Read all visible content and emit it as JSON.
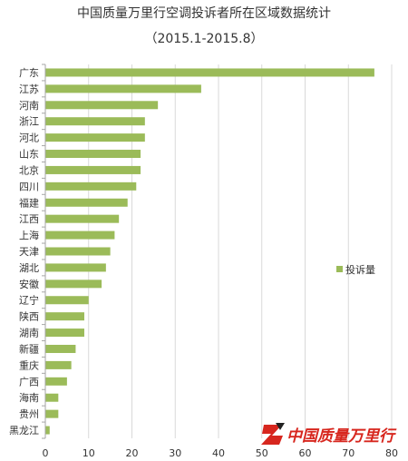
{
  "logo": {
    "text": "中国质量万里行"
  },
  "colors": {
    "bar": "#9BBB59",
    "grid": "#D9D9D9",
    "axis": "#A6A6A6",
    "logo_red": "#D7261E",
    "logo_dark": "#222222"
  },
  "chart_data": {
    "type": "bar",
    "orientation": "horizontal",
    "title": "中国质量万里行空调投诉者所在区域数据统计",
    "subtitle": "（2015.1-2015.8）",
    "categories": [
      "广东",
      "江苏",
      "河南",
      "浙江",
      "河北",
      "山东",
      "北京",
      "四川",
      "福建",
      "江西",
      "上海",
      "天津",
      "湖北",
      "安徽",
      "辽宁",
      "陕西",
      "湖南",
      "新疆",
      "重庆",
      "广西",
      "海南",
      "贵州",
      "黑龙江"
    ],
    "series": [
      {
        "name": "投诉量",
        "values": [
          76,
          36,
          26,
          23,
          23,
          22,
          22,
          21,
          19,
          17,
          16,
          15,
          14,
          13,
          10,
          9,
          9,
          7,
          6,
          5,
          3,
          3,
          1
        ]
      }
    ],
    "xlim": [
      0,
      80
    ],
    "xticks": [
      0,
      10,
      20,
      30,
      40,
      50,
      60,
      70,
      80
    ],
    "grid": true,
    "legend_position": "right"
  }
}
